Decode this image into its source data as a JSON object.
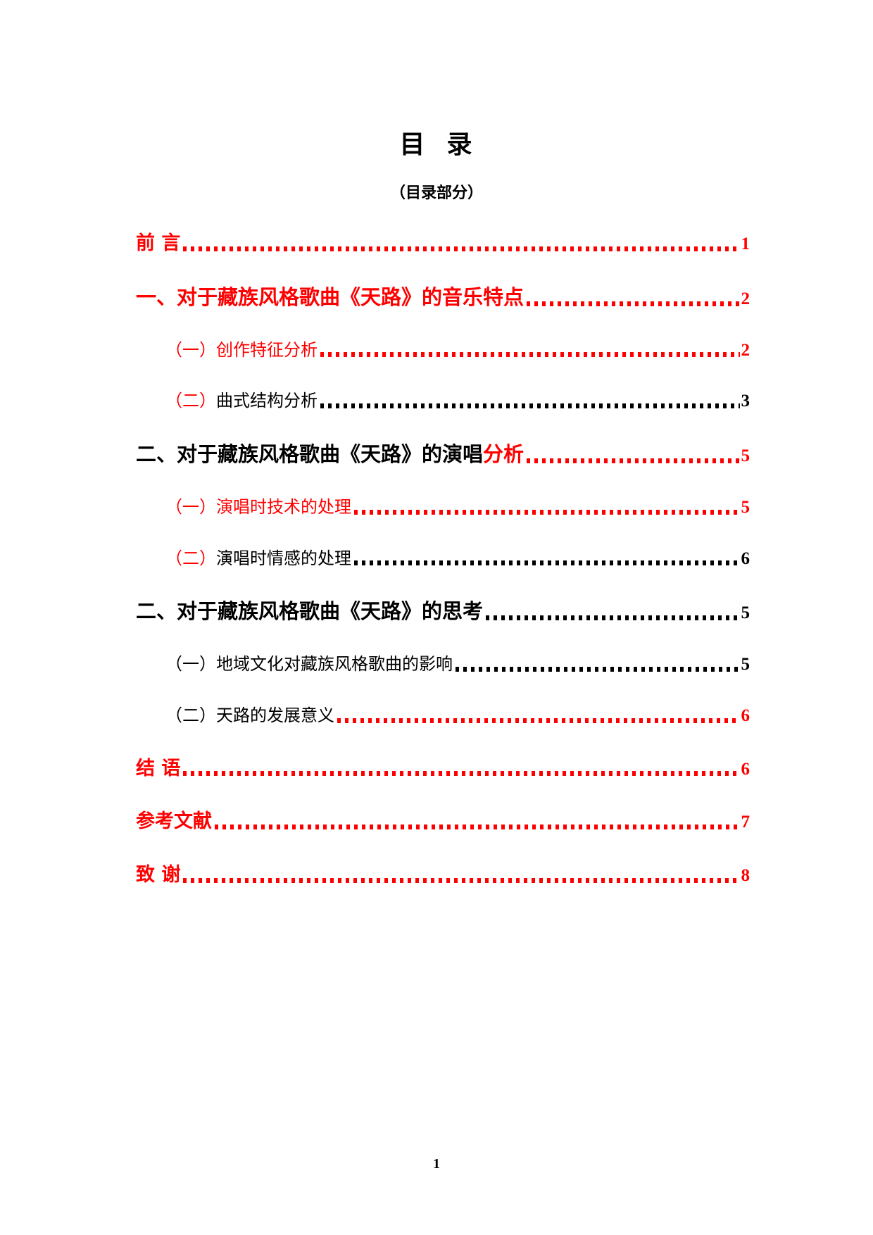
{
  "header": {
    "title": "目  录",
    "subtitle": "（目录部分）"
  },
  "colors": {
    "accent_red": "#ff0000",
    "text_black": "#000000"
  },
  "toc": {
    "entries": [
      {
        "level": 1,
        "style": "heading-short",
        "segments": [
          {
            "text": "前 言",
            "color": "#ff0000",
            "bold": true
          }
        ],
        "dots_color": "#ff0000",
        "page": "1",
        "page_color": "#ff0000"
      },
      {
        "level": 1,
        "style": "heading-big",
        "segments": [
          {
            "text": "一、对于藏族风格歌曲《天路》的音乐特点",
            "color": "#ff0000",
            "bold": true
          }
        ],
        "dots_color": "#ff0000",
        "page": "2",
        "page_color": "#ff0000"
      },
      {
        "level": 2,
        "style": "sub",
        "segments": [
          {
            "text": "（一）创作特征分析",
            "color": "#ff0000",
            "bold": false
          }
        ],
        "dots_color": "#ff0000",
        "page": "2",
        "page_color": "#ff0000"
      },
      {
        "level": 2,
        "style": "sub",
        "segments": [
          {
            "text": "（二）",
            "color": "#ff0000",
            "bold": false
          },
          {
            "text": "曲式结构分析",
            "color": "#000000",
            "bold": false
          }
        ],
        "dots_color": "#000000",
        "page": "3",
        "page_color": "#000000"
      },
      {
        "level": 1,
        "style": "heading-big",
        "segments": [
          {
            "text": "二、对于藏族风格歌曲《天路》的演唱",
            "color": "#000000",
            "bold": true
          },
          {
            "text": "分析",
            "color": "#ff0000",
            "bold": true
          }
        ],
        "dots_color": "#ff0000",
        "page": "5",
        "page_color": "#ff0000"
      },
      {
        "level": 2,
        "style": "sub",
        "segments": [
          {
            "text": "（一）演唱时技术的处理",
            "color": "#ff0000",
            "bold": false
          }
        ],
        "dots_color": "#ff0000",
        "page": "5",
        "page_color": "#ff0000"
      },
      {
        "level": 2,
        "style": "sub",
        "segments": [
          {
            "text": "（二）",
            "color": "#ff0000",
            "bold": false
          },
          {
            "text": "演唱时情感的处理",
            "color": "#000000",
            "bold": false
          }
        ],
        "dots_color": "#000000",
        "page": "6",
        "page_color": "#000000"
      },
      {
        "level": 1,
        "style": "heading-big",
        "segments": [
          {
            "text": "二、对于藏族风格歌曲《天路》的思考",
            "color": "#000000",
            "bold": true
          }
        ],
        "dots_color": "#000000",
        "page": "5",
        "page_color": "#000000"
      },
      {
        "level": 2,
        "style": "sub",
        "segments": [
          {
            "text": "（一）地域文化对藏族风格歌曲的影响",
            "color": "#000000",
            "bold": false
          }
        ],
        "dots_color": "#000000",
        "page": "5",
        "page_color": "#000000"
      },
      {
        "level": 2,
        "style": "sub",
        "segments": [
          {
            "text": "（二）天路的发展意义",
            "color": "#000000",
            "bold": false
          }
        ],
        "dots_color": "#ff0000",
        "page": "6",
        "page_color": "#ff0000"
      },
      {
        "level": 1,
        "style": "heading-short",
        "segments": [
          {
            "text": "结 语",
            "color": "#ff0000",
            "bold": true
          }
        ],
        "dots_color": "#ff0000",
        "page": "6",
        "page_color": "#ff0000"
      },
      {
        "level": 1,
        "style": "heading-short",
        "segments": [
          {
            "text": "参考文献",
            "color": "#ff0000",
            "bold": true
          }
        ],
        "dots_color": "#ff0000",
        "page": "7",
        "page_color": "#ff0000"
      },
      {
        "level": 1,
        "style": "heading-short",
        "segments": [
          {
            "text": "致 谢",
            "color": "#ff0000",
            "bold": true
          }
        ],
        "dots_color": "#ff0000",
        "page": "8",
        "page_color": "#ff0000"
      }
    ]
  },
  "footer": {
    "page_number": "1"
  }
}
